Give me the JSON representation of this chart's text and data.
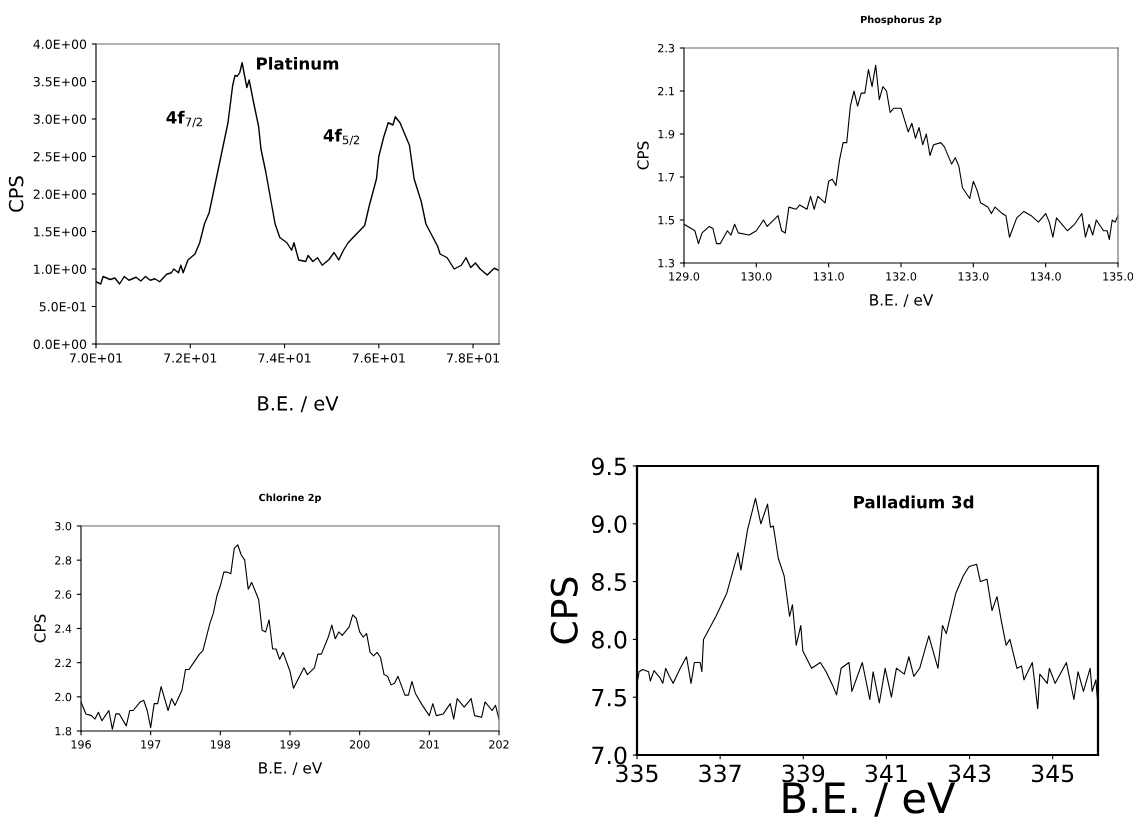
{
  "chart_data": [
    {
      "type": "line",
      "title": "Platinum",
      "xlabel": "B.E. / eV",
      "ylabel": "CPS",
      "xlim": [
        70,
        78.55
      ],
      "ylim": [
        0,
        4
      ],
      "xticks": [
        {
          "value": 70,
          "label": "7.0E+01"
        },
        {
          "value": 72,
          "label": "7.2E+01"
        },
        {
          "value": 74,
          "label": "7.4E+01"
        },
        {
          "value": 76,
          "label": "7.6E+01"
        },
        {
          "value": 78,
          "label": "7.8E+01"
        }
      ],
      "yticks": [
        {
          "value": 0,
          "label": "0.0E+00"
        },
        {
          "value": 0.5,
          "label": "5.0E-01"
        },
        {
          "value": 1,
          "label": "1.0E+00"
        },
        {
          "value": 1.5,
          "label": "1.5E+00"
        },
        {
          "value": 2,
          "label": "2.0E+00"
        },
        {
          "value": 2.5,
          "label": "2.5E+00"
        },
        {
          "value": 3,
          "label": "3.0E+00"
        },
        {
          "value": 3.5,
          "label": "3.5E+00"
        },
        {
          "value": 4,
          "label": "4.0E+00"
        }
      ],
      "annotations": [
        "4f$_{7/2}$",
        "4f$_{5/2}$"
      ],
      "series": [
        {
          "color": "#000000",
          "x": [
            70.0,
            70.1,
            70.15,
            70.3,
            70.4,
            70.5,
            70.6,
            70.7,
            70.85,
            70.95,
            71.05,
            71.15,
            71.25,
            71.35,
            71.5,
            71.6,
            71.65,
            71.75,
            71.8,
            71.85,
            71.95,
            72.1,
            72.2,
            72.3,
            72.4,
            72.5,
            72.65,
            72.75,
            72.8,
            72.9,
            72.95,
            73.0,
            73.05,
            73.1,
            73.2,
            73.25,
            73.35,
            73.45,
            73.5,
            73.6,
            73.7,
            73.8,
            73.9,
            74.05,
            74.15,
            74.2,
            74.3,
            74.45,
            74.5,
            74.6,
            74.7,
            74.8,
            74.95,
            75.05,
            75.15,
            75.25,
            75.35,
            75.5,
            75.7,
            75.8,
            75.95,
            76.0,
            76.1,
            76.2,
            76.3,
            76.35,
            76.45,
            76.55,
            76.65,
            76.75,
            76.9,
            77.0,
            77.15,
            77.25,
            77.3,
            77.45,
            77.6,
            77.75,
            77.85,
            77.95,
            78.05,
            78.15,
            78.3,
            78.45,
            78.55
          ],
          "values": [
            0.83,
            0.8,
            0.9,
            0.86,
            0.88,
            0.8,
            0.9,
            0.85,
            0.89,
            0.84,
            0.9,
            0.85,
            0.87,
            0.83,
            0.93,
            0.95,
            1.0,
            0.95,
            1.05,
            0.95,
            1.12,
            1.2,
            1.35,
            1.6,
            1.75,
            2.05,
            2.5,
            2.8,
            2.95,
            3.45,
            3.58,
            3.57,
            3.62,
            3.75,
            3.42,
            3.52,
            3.2,
            2.9,
            2.6,
            2.3,
            1.95,
            1.6,
            1.42,
            1.35,
            1.25,
            1.35,
            1.12,
            1.1,
            1.18,
            1.1,
            1.15,
            1.05,
            1.13,
            1.22,
            1.12,
            1.25,
            1.35,
            1.45,
            1.58,
            1.85,
            2.2,
            2.5,
            2.75,
            2.95,
            2.92,
            3.03,
            2.95,
            2.8,
            2.65,
            2.2,
            1.9,
            1.6,
            1.42,
            1.3,
            1.2,
            1.15,
            1.0,
            1.05,
            1.15,
            1.02,
            1.08,
            1.0,
            0.92,
            1.01,
            0.98
          ]
        }
      ]
    },
    {
      "type": "line",
      "title": "Phosphorus 2p",
      "xlabel": "B.E. / eV",
      "ylabel": "CPS",
      "xlim": [
        129,
        135
      ],
      "ylim": [
        1.3,
        2.3
      ],
      "xticks": [
        {
          "value": 129,
          "label": "129.0"
        },
        {
          "value": 130,
          "label": "130.0"
        },
        {
          "value": 131,
          "label": "131.0"
        },
        {
          "value": 132,
          "label": "132.0"
        },
        {
          "value": 133,
          "label": "133.0"
        },
        {
          "value": 134,
          "label": "134.0"
        },
        {
          "value": 135,
          "label": "135.0"
        }
      ],
      "yticks": [
        1.3,
        1.5,
        1.7,
        1.9,
        2.1,
        2.3
      ],
      "series": [
        {
          "color": "#000000",
          "x": [
            129.0,
            129.1,
            129.15,
            129.2,
            129.25,
            129.35,
            129.4,
            129.45,
            129.5,
            129.6,
            129.65,
            129.7,
            129.75,
            129.9,
            130.0,
            130.1,
            130.15,
            130.3,
            130.35,
            130.4,
            130.45,
            130.55,
            130.6,
            130.7,
            130.75,
            130.8,
            130.85,
            130.95,
            131.0,
            131.05,
            131.1,
            131.15,
            131.2,
            131.25,
            131.3,
            131.35,
            131.4,
            131.45,
            131.5,
            131.55,
            131.6,
            131.65,
            131.7,
            131.75,
            131.8,
            131.85,
            131.9,
            132.0,
            132.1,
            132.15,
            132.2,
            132.25,
            132.3,
            132.35,
            132.4,
            132.45,
            132.55,
            132.6,
            132.7,
            132.75,
            132.8,
            132.85,
            132.95,
            133.0,
            133.05,
            133.1,
            133.2,
            133.25,
            133.3,
            133.4,
            133.45,
            133.5,
            133.6,
            133.7,
            133.8,
            133.9,
            134.0,
            134.05,
            134.1,
            134.15,
            134.2,
            134.3,
            134.4,
            134.5,
            134.55,
            134.6,
            134.65,
            134.7,
            134.8,
            134.85,
            134.88,
            134.92,
            134.96,
            135.0
          ],
          "values": [
            1.48,
            1.46,
            1.45,
            1.39,
            1.44,
            1.47,
            1.46,
            1.39,
            1.39,
            1.45,
            1.43,
            1.48,
            1.44,
            1.43,
            1.45,
            1.5,
            1.47,
            1.52,
            1.45,
            1.44,
            1.56,
            1.55,
            1.57,
            1.55,
            1.61,
            1.55,
            1.61,
            1.58,
            1.68,
            1.69,
            1.66,
            1.78,
            1.86,
            1.86,
            2.03,
            2.1,
            2.03,
            2.09,
            2.09,
            2.2,
            2.12,
            2.22,
            2.06,
            2.12,
            2.1,
            2.0,
            2.02,
            2.02,
            1.91,
            1.95,
            1.88,
            1.93,
            1.85,
            1.9,
            1.8,
            1.85,
            1.86,
            1.84,
            1.76,
            1.79,
            1.75,
            1.65,
            1.6,
            1.68,
            1.64,
            1.58,
            1.56,
            1.53,
            1.56,
            1.53,
            1.52,
            1.42,
            1.51,
            1.54,
            1.52,
            1.49,
            1.53,
            1.49,
            1.42,
            1.51,
            1.49,
            1.45,
            1.48,
            1.53,
            1.42,
            1.48,
            1.43,
            1.5,
            1.45,
            1.45,
            1.41,
            1.5,
            1.49,
            1.52
          ]
        }
      ]
    },
    {
      "type": "line",
      "title": "Chlorine 2p",
      "xlabel": "B.E. / eV",
      "ylabel": "CPS",
      "xlim": [
        196,
        202
      ],
      "ylim": [
        1.8,
        3.0
      ],
      "xticks": [
        196,
        197,
        198,
        199,
        200,
        201,
        202
      ],
      "yticks": [
        1.8,
        {
          "value": 2,
          "label": "2.0"
        },
        2.2,
        2.4,
        2.6,
        2.8,
        {
          "value": 3,
          "label": "3.0"
        }
      ],
      "series": [
        {
          "color": "#000000",
          "x": [
            196.0,
            196.07,
            196.15,
            196.2,
            196.25,
            196.3,
            196.35,
            196.4,
            196.45,
            196.5,
            196.55,
            196.65,
            196.7,
            196.75,
            196.85,
            196.9,
            196.95,
            197.0,
            197.05,
            197.1,
            197.15,
            197.25,
            197.3,
            197.35,
            197.45,
            197.5,
            197.55,
            197.6,
            197.7,
            197.75,
            197.85,
            197.9,
            197.95,
            198.0,
            198.05,
            198.1,
            198.15,
            198.2,
            198.25,
            198.3,
            198.35,
            198.4,
            198.45,
            198.55,
            198.6,
            198.65,
            198.7,
            198.75,
            198.8,
            198.85,
            198.9,
            199.0,
            199.05,
            199.2,
            199.25,
            199.35,
            199.4,
            199.45,
            199.55,
            199.6,
            199.65,
            199.7,
            199.75,
            199.85,
            199.9,
            199.95,
            200.0,
            200.05,
            200.1,
            200.15,
            200.2,
            200.25,
            200.3,
            200.35,
            200.4,
            200.45,
            200.5,
            200.55,
            200.65,
            200.7,
            200.75,
            200.8,
            200.9,
            201.0,
            201.05,
            201.1,
            201.2,
            201.3,
            201.35,
            201.4,
            201.5,
            201.6,
            201.65,
            201.75,
            201.8,
            201.9,
            201.95,
            202.0
          ],
          "values": [
            1.97,
            1.9,
            1.89,
            1.87,
            1.91,
            1.86,
            1.89,
            1.92,
            1.81,
            1.9,
            1.9,
            1.83,
            1.92,
            1.92,
            1.97,
            1.98,
            1.92,
            1.82,
            1.96,
            1.96,
            2.06,
            1.92,
            1.99,
            1.95,
            2.04,
            2.16,
            2.16,
            2.19,
            2.25,
            2.27,
            2.43,
            2.49,
            2.59,
            2.65,
            2.73,
            2.73,
            2.72,
            2.87,
            2.89,
            2.83,
            2.8,
            2.63,
            2.67,
            2.57,
            2.39,
            2.38,
            2.45,
            2.28,
            2.28,
            2.22,
            2.26,
            2.15,
            2.05,
            2.17,
            2.13,
            2.17,
            2.25,
            2.25,
            2.35,
            2.42,
            2.34,
            2.38,
            2.36,
            2.41,
            2.48,
            2.46,
            2.38,
            2.35,
            2.37,
            2.26,
            2.24,
            2.26,
            2.23,
            2.13,
            2.12,
            2.07,
            2.08,
            2.12,
            2.01,
            2.01,
            2.09,
            2.02,
            1.95,
            1.89,
            1.96,
            1.89,
            1.9,
            1.96,
            1.87,
            1.99,
            1.94,
            1.99,
            1.89,
            1.88,
            1.97,
            1.92,
            1.95,
            1.87
          ]
        }
      ]
    },
    {
      "type": "line",
      "title": "Palladium 3d",
      "xlabel": "B.E. / eV",
      "ylabel": "CPS",
      "xlim": [
        335,
        346.09
      ],
      "ylim": [
        7.0,
        9.5
      ],
      "xticks": [
        335,
        337,
        339,
        341,
        343,
        345
      ],
      "yticks": [
        {
          "value": 7,
          "label": "7.0"
        },
        7.5,
        {
          "value": 8,
          "label": "8.0"
        },
        8.5,
        {
          "value": 9,
          "label": "9.0"
        },
        9.5
      ],
      "series": [
        {
          "color": "#000000",
          "x": [
            335.0,
            335.05,
            335.14,
            335.28,
            335.32,
            335.41,
            335.55,
            335.62,
            335.69,
            335.78,
            335.87,
            336.04,
            336.19,
            336.3,
            336.38,
            336.52,
            336.56,
            336.6,
            336.9,
            337.16,
            337.43,
            337.5,
            337.66,
            337.85,
            337.98,
            338.14,
            338.21,
            338.28,
            338.4,
            338.54,
            338.67,
            338.74,
            338.83,
            338.94,
            338.99,
            339.2,
            339.41,
            339.55,
            339.71,
            339.8,
            339.91,
            340.1,
            340.17,
            340.42,
            340.6,
            340.68,
            340.83,
            340.97,
            341.12,
            341.24,
            341.43,
            341.54,
            341.66,
            341.8,
            342.02,
            342.24,
            342.35,
            342.44,
            342.67,
            342.85,
            342.99,
            343.17,
            343.26,
            343.42,
            343.54,
            343.66,
            343.77,
            343.88,
            343.97,
            344.14,
            344.25,
            344.31,
            344.51,
            344.64,
            344.69,
            344.87,
            344.92,
            345.06,
            345.33,
            345.51,
            345.61,
            345.74,
            345.9,
            345.95,
            346.04,
            346.09
          ],
          "values": [
            7.62,
            7.72,
            7.74,
            7.72,
            7.64,
            7.73,
            7.67,
            7.62,
            7.75,
            7.68,
            7.62,
            7.75,
            7.85,
            7.62,
            7.8,
            7.8,
            7.72,
            8.0,
            8.2,
            8.4,
            8.75,
            8.6,
            8.95,
            9.22,
            9.0,
            9.17,
            8.97,
            8.98,
            8.7,
            8.55,
            8.2,
            8.3,
            7.95,
            8.12,
            7.9,
            7.75,
            7.8,
            7.72,
            7.6,
            7.52,
            7.75,
            7.8,
            7.55,
            7.8,
            7.48,
            7.72,
            7.45,
            7.75,
            7.5,
            7.75,
            7.7,
            7.85,
            7.68,
            7.75,
            8.03,
            7.75,
            8.12,
            8.05,
            8.4,
            8.55,
            8.63,
            8.65,
            8.5,
            8.52,
            8.25,
            8.37,
            8.15,
            7.95,
            8.0,
            7.75,
            7.77,
            7.65,
            7.8,
            7.4,
            7.7,
            7.62,
            7.75,
            7.62,
            7.8,
            7.48,
            7.72,
            7.55,
            7.75,
            7.55,
            7.65,
            7.42
          ]
        }
      ]
    }
  ]
}
